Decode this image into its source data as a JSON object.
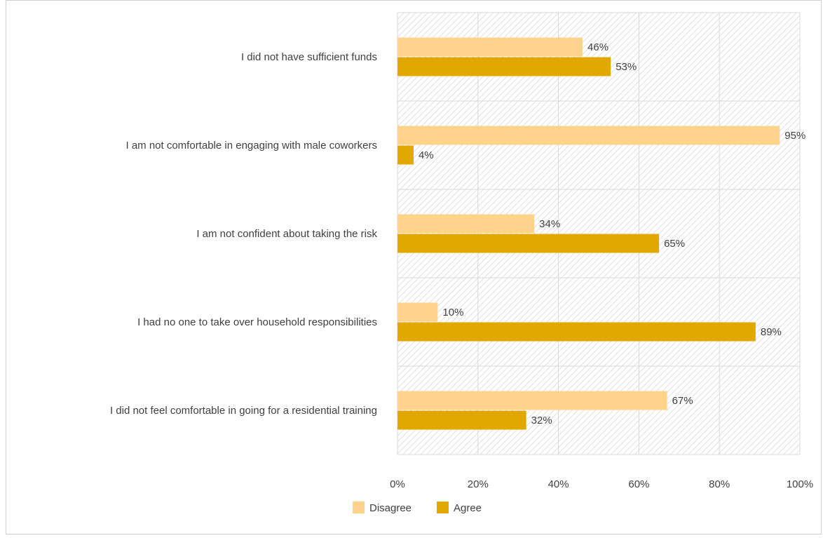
{
  "chart_data": {
    "type": "bar",
    "orientation": "horizontal",
    "categories": [
      "I did not have sufficient funds",
      "I am not comfortable in engaging with male coworkers",
      "I am not confident about taking the risk",
      "I had no one to take over household responsibilities",
      "I did not feel comfortable in going for a residential training"
    ],
    "series": [
      {
        "name": "Disagree",
        "color": "#FFD38A",
        "values": [
          46,
          95,
          34,
          10,
          67
        ]
      },
      {
        "name": "Agree",
        "color": "#E0A800",
        "values": [
          53,
          4,
          65,
          89,
          32
        ]
      }
    ],
    "xlim": [
      0,
      100
    ],
    "x_ticks": [
      "0%",
      "20%",
      "40%",
      "60%",
      "80%",
      "100%"
    ],
    "value_suffix": "%",
    "grid": true,
    "legend_position": "bottom",
    "plot_fill": "diagonal-hatch",
    "title": "",
    "xlabel": "",
    "ylabel": ""
  }
}
